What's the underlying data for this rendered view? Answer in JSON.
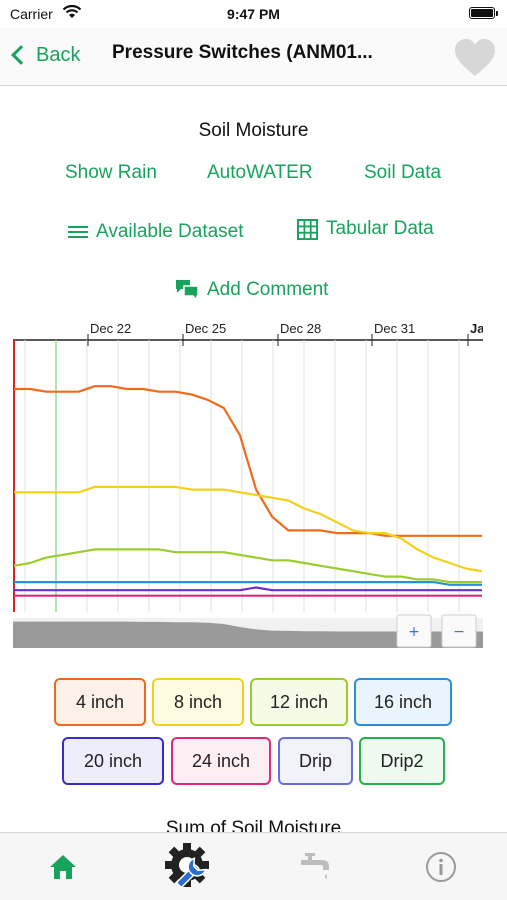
{
  "status_bar": {
    "carrier": "Carrier",
    "time": "9:47 PM"
  },
  "nav": {
    "back_label": "Back",
    "title": "Pressure Switches (ANM01...",
    "favorite_icon": "heart-icon"
  },
  "section_title": "Soil Moisture",
  "links": {
    "show_rain": "Show Rain",
    "autowater": "AutoWATER",
    "soil_data": "Soil Data",
    "available_dataset": "Available Dataset",
    "tabular_data": "Tabular Data",
    "add_comment": "Add Comment"
  },
  "colors": {
    "accent": "#17a35b"
  },
  "chart_data": {
    "type": "line",
    "x_tick_labels": [
      "Dec 22",
      "Dec 25",
      "Dec 28",
      "Dec 31",
      "Jan"
    ],
    "x_range": [
      "Dec 19",
      "Jan 3"
    ],
    "series": [
      {
        "color": "#f06a1a",
        "values": [
          82,
          82,
          81,
          81,
          81,
          83,
          83,
          82,
          82,
          81,
          81,
          80,
          78,
          75,
          65,
          45,
          35,
          30,
          30,
          30,
          29,
          29,
          29,
          28,
          28,
          28,
          28,
          28,
          28,
          28
        ]
      },
      {
        "color": "#f2d01b",
        "values": [
          44,
          44,
          44,
          44,
          44,
          46,
          46,
          46,
          46,
          46,
          46,
          45,
          45,
          45,
          44,
          43,
          42,
          41,
          38,
          36,
          33,
          30,
          29,
          29,
          27,
          23,
          20,
          18,
          16,
          15
        ]
      },
      {
        "color": "#9ccc2c",
        "values": [
          17,
          18,
          20,
          21,
          22,
          23,
          23,
          23,
          23,
          23,
          22,
          22,
          22,
          22,
          21,
          20,
          19,
          19,
          18,
          17,
          16,
          15,
          14,
          13,
          13,
          12,
          12,
          11,
          11,
          11
        ]
      },
      {
        "color": "#2b8fd6",
        "values": [
          11,
          11,
          11,
          11,
          11,
          11,
          11,
          11,
          11,
          11,
          11,
          11,
          11,
          11,
          11,
          11,
          11,
          11,
          11,
          11,
          11,
          11,
          11,
          11,
          11,
          11,
          11,
          10,
          10,
          10
        ]
      },
      {
        "color": "#6a2fd0",
        "values": [
          8,
          8,
          8,
          8,
          8,
          8,
          8,
          8,
          8,
          8,
          8,
          8,
          8,
          8,
          8,
          9,
          8,
          8,
          8,
          8,
          8,
          8,
          8,
          8,
          8,
          8,
          8,
          8,
          8,
          8
        ]
      },
      {
        "color": "#e0287a",
        "values": [
          6,
          6,
          6,
          6,
          6,
          6,
          6,
          6,
          6,
          6,
          6,
          6,
          6,
          6,
          6,
          6,
          6,
          6,
          6,
          6,
          6,
          6,
          6,
          6,
          6,
          6,
          6,
          6,
          6,
          6
        ]
      }
    ],
    "overview_values": [
      88,
      88,
      88,
      88,
      88,
      88,
      88,
      88,
      87,
      87,
      86,
      86,
      84,
      80,
      70,
      62,
      58,
      57,
      56,
      56,
      55,
      55,
      55,
      55,
      55,
      55,
      55,
      55,
      55,
      55
    ],
    "zoom_in_label": "+",
    "zoom_out_label": "−"
  },
  "legend": [
    {
      "label": "4 inch",
      "border": "#f06a1a",
      "fill": "#fdf0e6"
    },
    {
      "label": "8 inch",
      "border": "#f2d01b",
      "fill": "#fffbe3"
    },
    {
      "label": "12 inch",
      "border": "#9ccc2c",
      "fill": "#f6fbe8"
    },
    {
      "label": "16 inch",
      "border": "#2b8fd6",
      "fill": "#eaf4fc"
    },
    {
      "label": "20 inch",
      "border": "#3a2cc9",
      "fill": "#eeedfb"
    },
    {
      "label": "24 inch",
      "border": "#e0287a",
      "fill": "#fdeef4"
    },
    {
      "label": "Drip",
      "border": "#6a6fd8",
      "fill": "#f2f2fb"
    },
    {
      "label": "Drip2",
      "border": "#24b34b",
      "fill": "#eefaf0"
    }
  ],
  "sum_title": "Sum of Soil Moisture",
  "tabs": [
    {
      "icon": "home-icon",
      "active": true
    },
    {
      "icon": "settings-wrench-icon",
      "active": false
    },
    {
      "icon": "faucet-icon",
      "active": false
    },
    {
      "icon": "info-icon",
      "active": false
    }
  ]
}
